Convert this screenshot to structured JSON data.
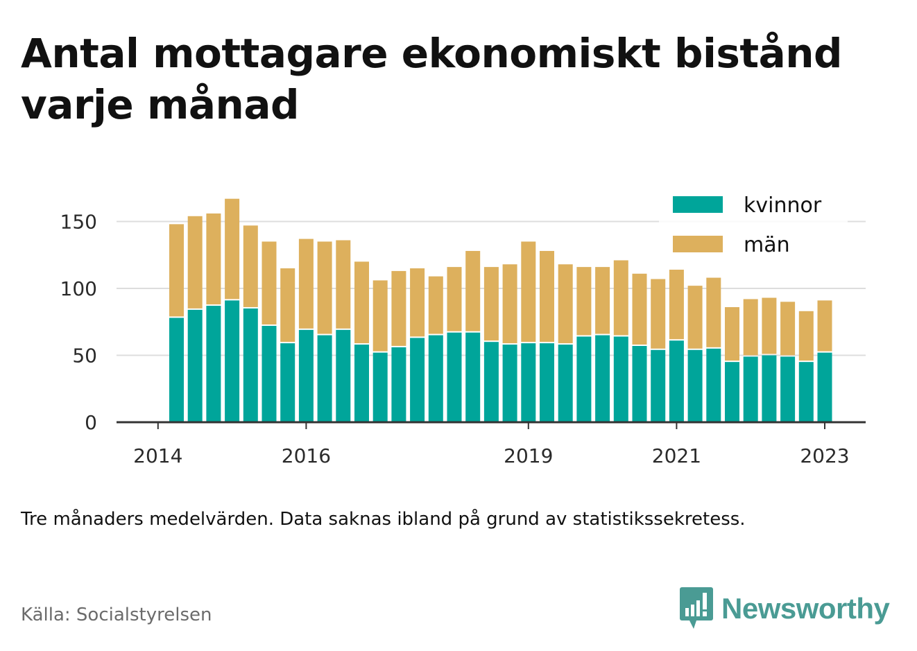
{
  "title": "Antal mottagare ekonomiskt bistånd varje månad",
  "subtitle": "Tre månaders medelvärden. Data saknas ibland på grund av statistikssekretess.",
  "source": "Källa: Socialstyrelsen",
  "brand": "Newsworthy",
  "colors": {
    "kvinnor": "#00a59a",
    "man": "#ddb05d",
    "grid": "#dddddd",
    "axis": "#333333"
  },
  "chart_data": {
    "type": "bar",
    "stacked": true,
    "y_ticks": [
      "0",
      "50",
      "100",
      "150"
    ],
    "ylim": [
      0,
      175
    ],
    "x_tick_labels": [
      {
        "label": "2014",
        "index": -1
      },
      {
        "label": "2016",
        "index": 7
      },
      {
        "label": "2019",
        "index": 19
      },
      {
        "label": "2021",
        "index": 27
      },
      {
        "label": "2023",
        "index": 35
      }
    ],
    "legend": [
      "kvinnor",
      "män"
    ],
    "legend_position": "top-right",
    "series": [
      {
        "name": "kvinnor",
        "values": [
          78,
          84,
          87,
          91,
          85,
          72,
          59,
          69,
          65,
          69,
          58,
          52,
          56,
          63,
          65,
          67,
          67,
          60,
          58,
          59,
          59,
          58,
          64,
          65,
          64,
          57,
          54,
          61,
          54,
          55,
          45,
          49,
          50,
          49,
          45,
          52
        ]
      },
      {
        "name": "män",
        "values": [
          70,
          70,
          69,
          76,
          62,
          63,
          56,
          68,
          70,
          67,
          62,
          54,
          57,
          52,
          44,
          49,
          61,
          56,
          60,
          76,
          69,
          60,
          52,
          51,
          57,
          54,
          53,
          53,
          48,
          53,
          41,
          43,
          43,
          41,
          38,
          39
        ]
      }
    ]
  }
}
